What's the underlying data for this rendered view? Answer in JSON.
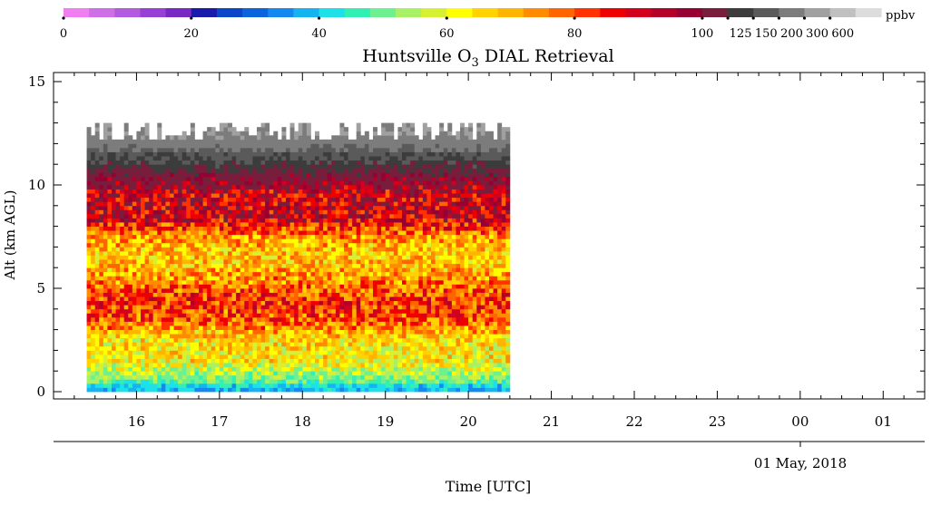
{
  "chart_data": {
    "type": "heatmap",
    "title_prefix": "Huntsville O",
    "title_subscript": "3",
    "title_suffix": " DIAL Retrieval",
    "xlabel": "Time [UTC]",
    "ylabel": "Alt (km AGL)",
    "date_label": "01 May, 2018",
    "x_ticks": [
      "16",
      "17",
      "18",
      "19",
      "20",
      "21",
      "22",
      "23",
      "00",
      "01"
    ],
    "y_ticks": [
      0,
      5,
      10,
      15
    ],
    "ylim": [
      0,
      15
    ],
    "x_range_hours": [
      15.0,
      25.5
    ],
    "data_time_range_hours": [
      15.4,
      20.5
    ],
    "colorbar": {
      "unit": "ppbv",
      "tick_labels": [
        "0",
        "20",
        "40",
        "60",
        "80",
        "100",
        "125",
        "150",
        "200",
        "300",
        "600"
      ],
      "colors": [
        "#f07ef0",
        "#d06ee8",
        "#b45ae0",
        "#9640d6",
        "#7a28c4",
        "#1a1aaa",
        "#0a46c8",
        "#0a64dc",
        "#1488ee",
        "#14b4f0",
        "#1ee0e8",
        "#32f0b4",
        "#6cf090",
        "#a8f064",
        "#d8f032",
        "#ffff00",
        "#ffd200",
        "#ffb400",
        "#ff8c00",
        "#ff6400",
        "#ff3200",
        "#ee0000",
        "#d2001e",
        "#b40028",
        "#960032",
        "#781e3c",
        "#3c3c3c",
        "#5a5a5a",
        "#7c7c7c",
        "#a0a0a0",
        "#c0c0c0",
        "#dcdcdc"
      ]
    },
    "profile": [
      {
        "alt_km": 0.2,
        "ppbv": 38
      },
      {
        "alt_km": 0.6,
        "ppbv": 50
      },
      {
        "alt_km": 1.5,
        "ppbv": 62
      },
      {
        "alt_km": 2.5,
        "ppbv": 64
      },
      {
        "alt_km": 3.5,
        "ppbv": 78
      },
      {
        "alt_km": 4.5,
        "ppbv": 82
      },
      {
        "alt_km": 5.5,
        "ppbv": 72
      },
      {
        "alt_km": 6.5,
        "ppbv": 66
      },
      {
        "alt_km": 7.5,
        "ppbv": 72
      },
      {
        "alt_km": 8.5,
        "ppbv": 92
      },
      {
        "alt_km": 9.5,
        "ppbv": 90
      },
      {
        "alt_km": 10.5,
        "ppbv": 110
      },
      {
        "alt_km": 11.5,
        "ppbv": 160
      },
      {
        "alt_km": 12.5,
        "ppbv": 300
      }
    ]
  }
}
